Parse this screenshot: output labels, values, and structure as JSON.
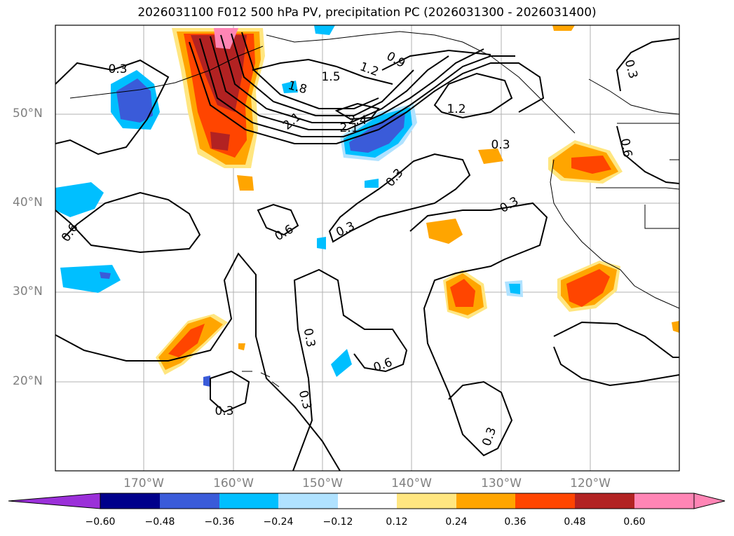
{
  "title": "2026031100 F012 500 hPa PV, precipitation PC (2026031300 - 2026031400)",
  "map": {
    "lat_ticks": [
      "50°N",
      "40°N",
      "30°N",
      "20°N"
    ],
    "lon_ticks": [
      "170°W",
      "160°W",
      "150°W",
      "140°W",
      "130°W",
      "120°W"
    ],
    "contour_labels": [
      "0.3",
      "0.6",
      "0.9",
      "1.2",
      "1.5",
      "1.8",
      "2.1",
      "2.4",
      "0.3",
      "0.3",
      "0.6",
      "0.3",
      "0.3",
      "0.3",
      "0.6",
      "0.3",
      "0.3",
      "0.3",
      "0.6",
      "1.2",
      "2.1",
      "0.3"
    ]
  },
  "colorbar": {
    "tick_labels": [
      "−0.60",
      "−0.48",
      "−0.36",
      "−0.24",
      "−0.12",
      "0.12",
      "0.24",
      "0.36",
      "0.48",
      "0.60"
    ],
    "colors": [
      "#9b30d9",
      "#00008b",
      "#3a5bd9",
      "#00bfff",
      "#b0e2ff",
      "#ffffff",
      "#ffe680",
      "#ffa500",
      "#ff4500",
      "#b22222",
      "#ff85b5"
    ]
  }
}
